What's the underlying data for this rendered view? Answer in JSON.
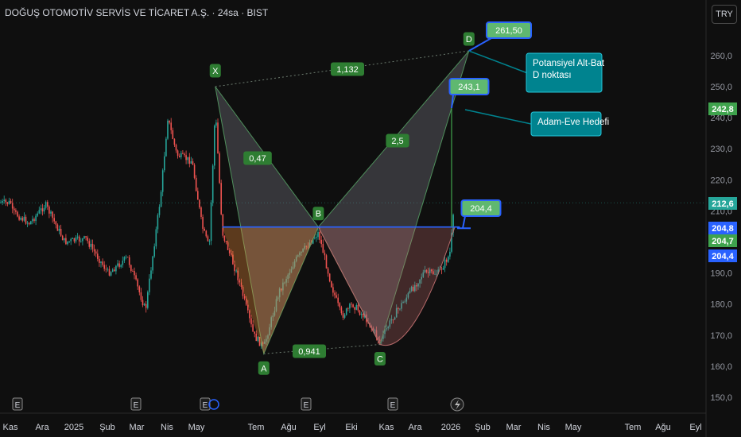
{
  "header": {
    "title": "DOĞUŞ OTOMOTİV SERVİS VE TİCARET A.Ş. · 24sa · BIST",
    "currency": "TRY"
  },
  "colors": {
    "background": "#0f0f0f",
    "up": "#26a69a",
    "down": "#ef5350",
    "pattern_green": "#3fa34d",
    "pattern_blue": "#2962ff",
    "callout_teal": "#00838f",
    "grid": "#1c1c1c"
  },
  "chart_data": {
    "type": "candlestick",
    "timeframe": "24sa",
    "ylim": [
      145,
      272
    ],
    "y_ticks": [
      150,
      160,
      170,
      180,
      190,
      200,
      210,
      220,
      230,
      240,
      250,
      260
    ],
    "y_tick_labels": [
      "150,0",
      "160,0",
      "170,0",
      "180,0",
      "190,0",
      "200,0",
      "210,0",
      "220,0",
      "230,0",
      "240,0",
      "250,0",
      "260,0"
    ],
    "x_axis_labels": [
      "Kas",
      "Ara",
      "2025",
      "Şub",
      "Mar",
      "Nis",
      "May",
      "Tem",
      "Ağu",
      "Eyl",
      "Eki",
      "Kas",
      "Ara",
      "2026",
      "Şub",
      "Mar",
      "Nis",
      "May",
      "Tem",
      "Ağu",
      "Eyl"
    ],
    "price_series": [
      {
        "date": "2024-10-28",
        "close": 210
      },
      {
        "date": "2024-11-15",
        "close": 206
      },
      {
        "date": "2024-12-01",
        "close": 212
      },
      {
        "date": "2024-12-20",
        "close": 200
      },
      {
        "date": "2025-01-10",
        "close": 201
      },
      {
        "date": "2025-02-01",
        "close": 190
      },
      {
        "date": "2025-02-20",
        "close": 195
      },
      {
        "date": "2025-03-10",
        "close": 178
      },
      {
        "date": "2025-03-25",
        "close": 215
      },
      {
        "date": "2025-04-01",
        "close": 240
      },
      {
        "date": "2025-04-10",
        "close": 228
      },
      {
        "date": "2025-04-25",
        "close": 226
      },
      {
        "date": "2025-05-05",
        "close": 205
      },
      {
        "date": "2025-05-12",
        "close": 198
      },
      {
        "date": "2025-05-18",
        "close": 243
      },
      {
        "date": "2025-05-25",
        "close": 203
      },
      {
        "date": "2025-06-10",
        "close": 188
      },
      {
        "date": "2025-06-25",
        "close": 170
      },
      {
        "date": "2025-07-05",
        "close": 166
      },
      {
        "date": "2025-07-20",
        "close": 184
      },
      {
        "date": "2025-08-05",
        "close": 194
      },
      {
        "date": "2025-08-20",
        "close": 200
      },
      {
        "date": "2025-08-28",
        "close": 203
      },
      {
        "date": "2025-09-10",
        "close": 186
      },
      {
        "date": "2025-09-20",
        "close": 176
      },
      {
        "date": "2025-10-01",
        "close": 180
      },
      {
        "date": "2025-10-15",
        "close": 175
      },
      {
        "date": "2025-10-28",
        "close": 168
      },
      {
        "date": "2025-11-10",
        "close": 176
      },
      {
        "date": "2025-11-25",
        "close": 183
      },
      {
        "date": "2025-12-10",
        "close": 190
      },
      {
        "date": "2025-12-25",
        "close": 190
      },
      {
        "date": "2026-01-05",
        "close": 196
      },
      {
        "date": "2026-01-10",
        "close": 212.6
      }
    ],
    "pattern": {
      "points": [
        {
          "name": "X",
          "date": "2025-05-18",
          "price": 250
        },
        {
          "name": "A",
          "date": "2025-07-05",
          "price": 164
        },
        {
          "name": "B",
          "date": "2025-08-28",
          "price": 204.8
        },
        {
          "name": "C",
          "date": "2025-10-28",
          "price": 167
        },
        {
          "name": "D",
          "date": "2026-01-24",
          "price": 261.5
        }
      ],
      "ratios": [
        {
          "text": "0,47",
          "between": "XA-AB"
        },
        {
          "text": "2,5",
          "between": "BC-CD"
        },
        {
          "text": "1,132",
          "between": "X-D"
        },
        {
          "text": "0,941",
          "between": "A-C"
        }
      ],
      "neckline": {
        "price": 204.8,
        "from": "2025-05-25",
        "to": "2026-01-15"
      }
    },
    "price_tags": [
      {
        "text": "261,50",
        "price": 261.5
      },
      {
        "text": "243,1",
        "price": 243.1
      },
      {
        "text": "204,4",
        "price": 204.4
      }
    ],
    "callouts": [
      {
        "text": "Potansiyel Alt-Bat D noktası"
      },
      {
        "text": "Adam-Eve Hedefi"
      }
    ],
    "price_axis_labels": [
      {
        "value": 242.8,
        "text": "242,8",
        "style": "green"
      },
      {
        "value": 212.6,
        "text": "212,6",
        "style": "teal"
      },
      {
        "value": 204.8,
        "text": "204,8",
        "style": "blue"
      },
      {
        "value": 204.7,
        "text": "204,7",
        "style": "green"
      },
      {
        "value": 204.4,
        "text": "204,4",
        "style": "blue"
      }
    ],
    "event_markers": [
      "E",
      "E",
      "E",
      "E",
      "E"
    ],
    "grid": false
  }
}
